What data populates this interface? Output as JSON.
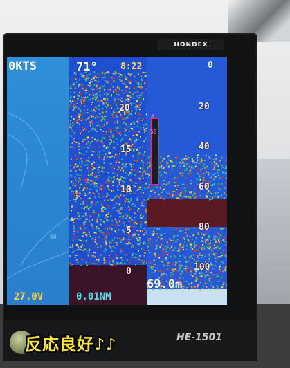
{
  "photo": {
    "brand": "HONDEX",
    "model_label": "HE-1501",
    "caption": "反応良好♪♪"
  },
  "plotter": {
    "speed": "0KTS",
    "voltage": "27.0V",
    "distance": "0.01NM",
    "contour_label": "60"
  },
  "sounder": {
    "water_temp": "71°",
    "clock": "8:22",
    "top_scale": "0",
    "left_scale": [
      "20",
      "15",
      "10",
      "5",
      "0"
    ],
    "right_scale": [
      "20",
      "40",
      "60",
      "80",
      "100"
    ],
    "depth": "69.0m",
    "gain_labels": [
      "0",
      "50"
    ]
  },
  "colors": {
    "plotter_bg": "#2a86d2",
    "sonar_blue": "#1e4fd0",
    "caption": "#ffe626",
    "voltage": "#ffd43a",
    "distance": "#4fe3f0"
  }
}
